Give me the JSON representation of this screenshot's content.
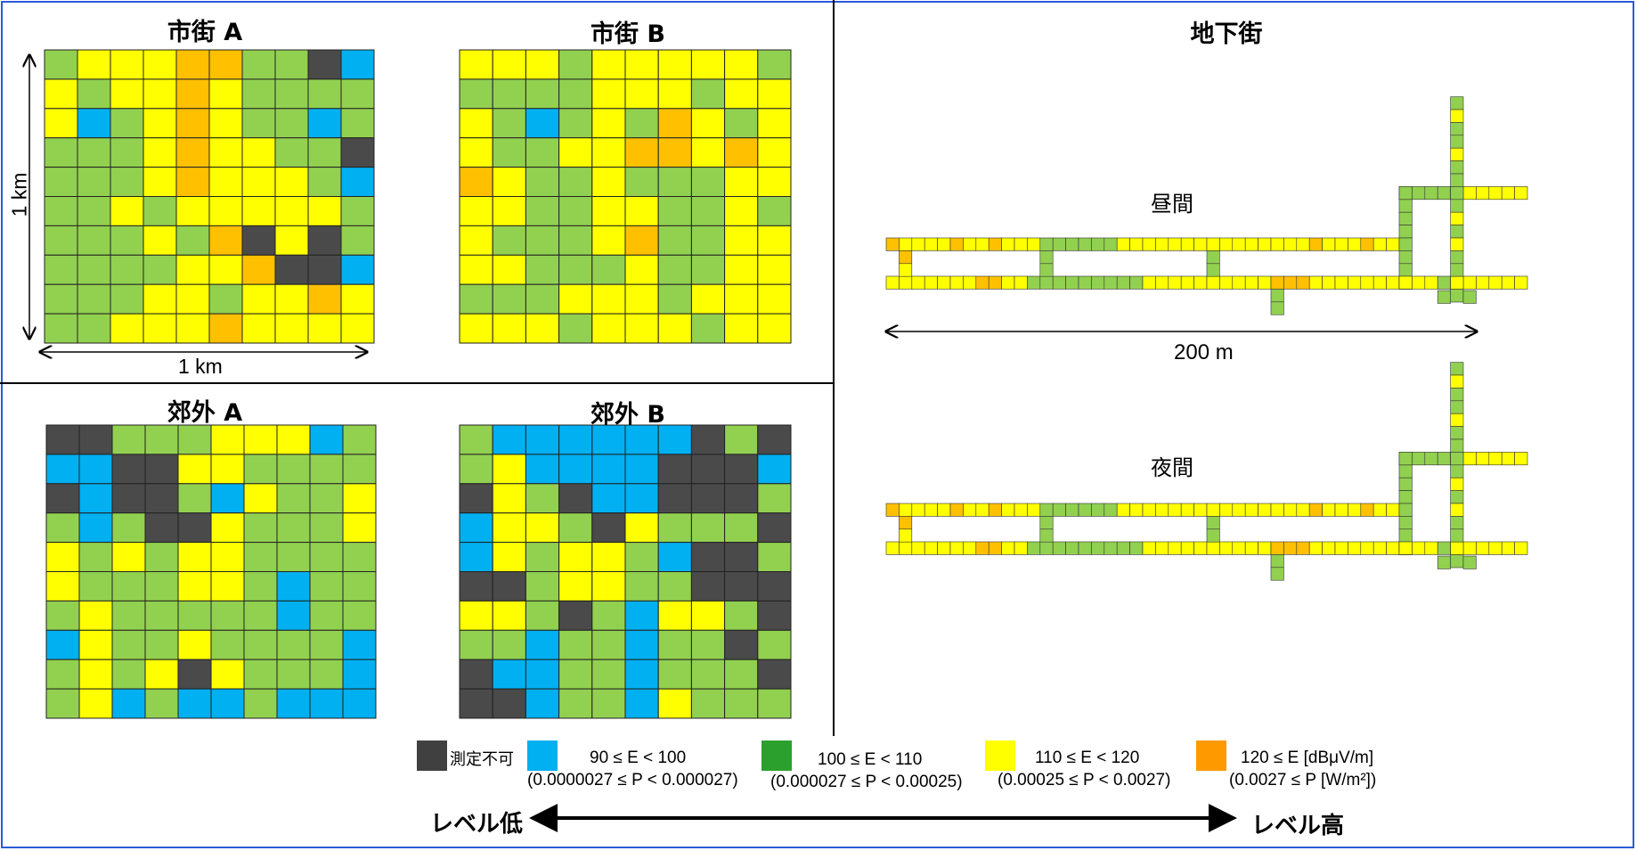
{
  "panels": {
    "city_a": {
      "title": "市街 A"
    },
    "city_b": {
      "title": "市街 B"
    },
    "suburb_a": {
      "title": "郊外 A"
    },
    "suburb_b": {
      "title": "郊外 B"
    },
    "underground": {
      "title": "地下街",
      "day_label": "昼間",
      "night_label": "夜間",
      "scale_label": "200 m"
    }
  },
  "axes": {
    "y_label": "1 km",
    "x_label": "1 km"
  },
  "colors": {
    "K": "#4a4a4a",
    "B": "#00b0f0",
    "G": "#92d050",
    "Y": "#ffff00",
    "O": "#ffc000"
  },
  "legend": {
    "items": [
      {
        "code": "K",
        "label": "測定不可",
        "color": "#404040"
      },
      {
        "code": "B",
        "label": "90 ≤ E < 100",
        "sub": "(0.0000027 ≤ P < 0.000027)",
        "color": "#00b0f0"
      },
      {
        "code": "G",
        "label": "100 ≤ E < 110",
        "sub": "(0.000027 ≤ P < 0.00025)",
        "color": "#2ca02c"
      },
      {
        "code": "Y",
        "label": "110 ≤ E < 120",
        "sub": "(0.00025 ≤ P < 0.0027)",
        "color": "#ffff00"
      },
      {
        "code": "O",
        "label": "120 ≤ E [dBμV/m]",
        "sub": "(0.0027 ≤ P [W/m²])",
        "color": "#ff9900"
      }
    ],
    "low_label": "レベル低",
    "high_label": "レベル高"
  },
  "grids": {
    "city_a": [
      "GYYYOOGGKB",
      "YGYYOYGGGG",
      "YBGYOYGGBG",
      "GGGYOYYGGK",
      "GGGYOYYYGB",
      "GGYGYYYYYG",
      "GGGYGOKYKG",
      "GGGGYYOKKB",
      "GGGYYGYYOY",
      "GGYYYOYYYY"
    ],
    "city_b": [
      "YYYGYYYYYG",
      "GGGGYYYGYY",
      "YGBGYGOYGY",
      "YGGYYOOYOY",
      "OYGGYGGGYY",
      "YYGGYYGGYG",
      "YGGGYOGGYY",
      "YYGGGYGGYY",
      "GGGYYYGYYY",
      "YYYGYYYGYY"
    ],
    "suburb_a": [
      "KKGGGYYYBG",
      "BBKKYYGGGG",
      "KBKKGBYGGY",
      "GBGKKYGGGY",
      "YGYGYYGGGG",
      "YGGGYYGBGG",
      "GYGGGGGBGG",
      "BYGGYGGGGB",
      "GYGYKYGGGB",
      "GYBGBBGBBB"
    ],
    "suburb_b": [
      "GBBBBBBKGK",
      "GYBBBBKKKB",
      "KYGKBBKKKG",
      "BYYGKYGGGK",
      "BYGYYGBKKG",
      "KKGYYGGKKK",
      "YYGKGBYYGK",
      "GGBGGBGGKG",
      "KBBGGBGGGK",
      "KKBGGBYGGG"
    ]
  }
}
